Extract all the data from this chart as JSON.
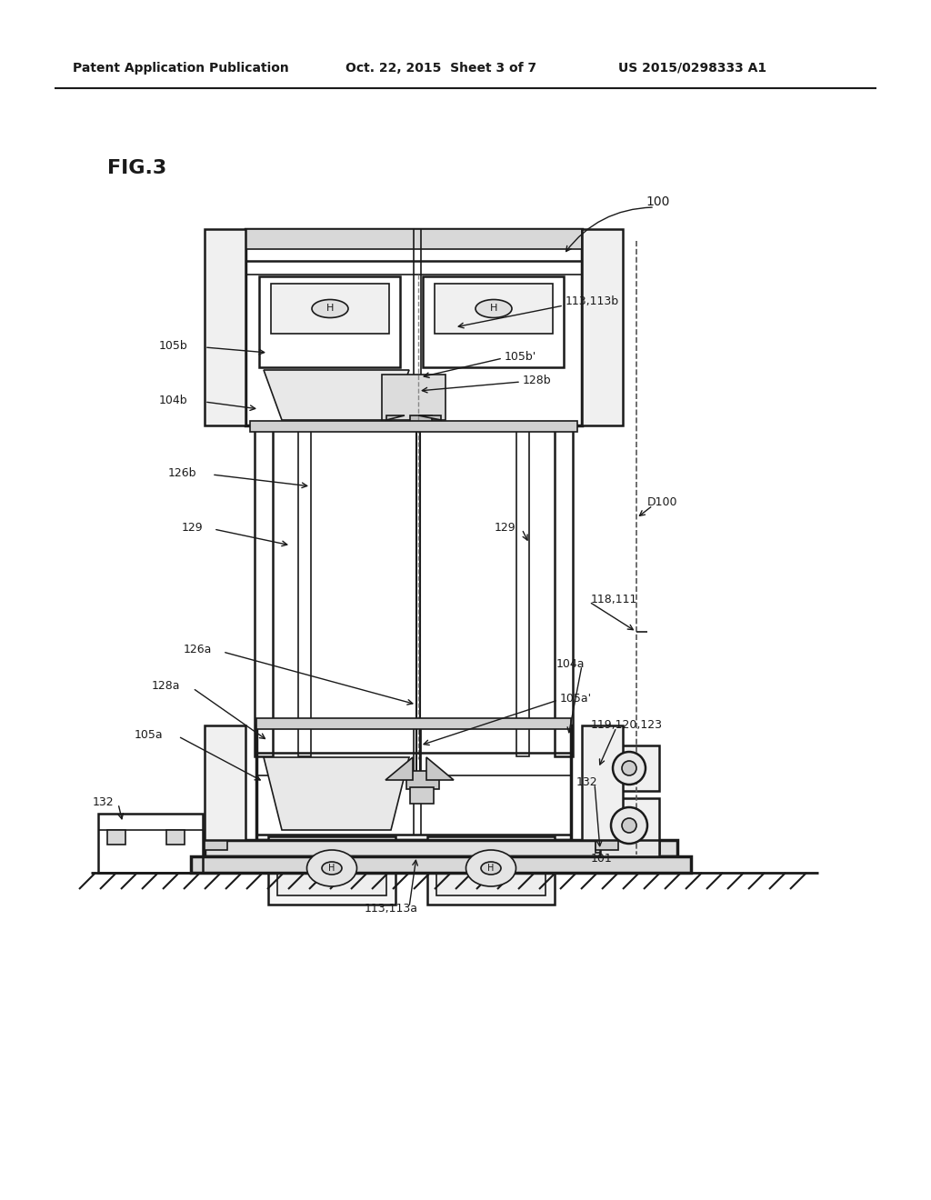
{
  "bg_color": "#ffffff",
  "col": "#1a1a1a",
  "header_left": "Patent Application Publication",
  "header_center": "Oct. 22, 2015  Sheet 3 of 7",
  "header_right": "US 2015/0298333 A1",
  "fig_label": "FIG.3"
}
